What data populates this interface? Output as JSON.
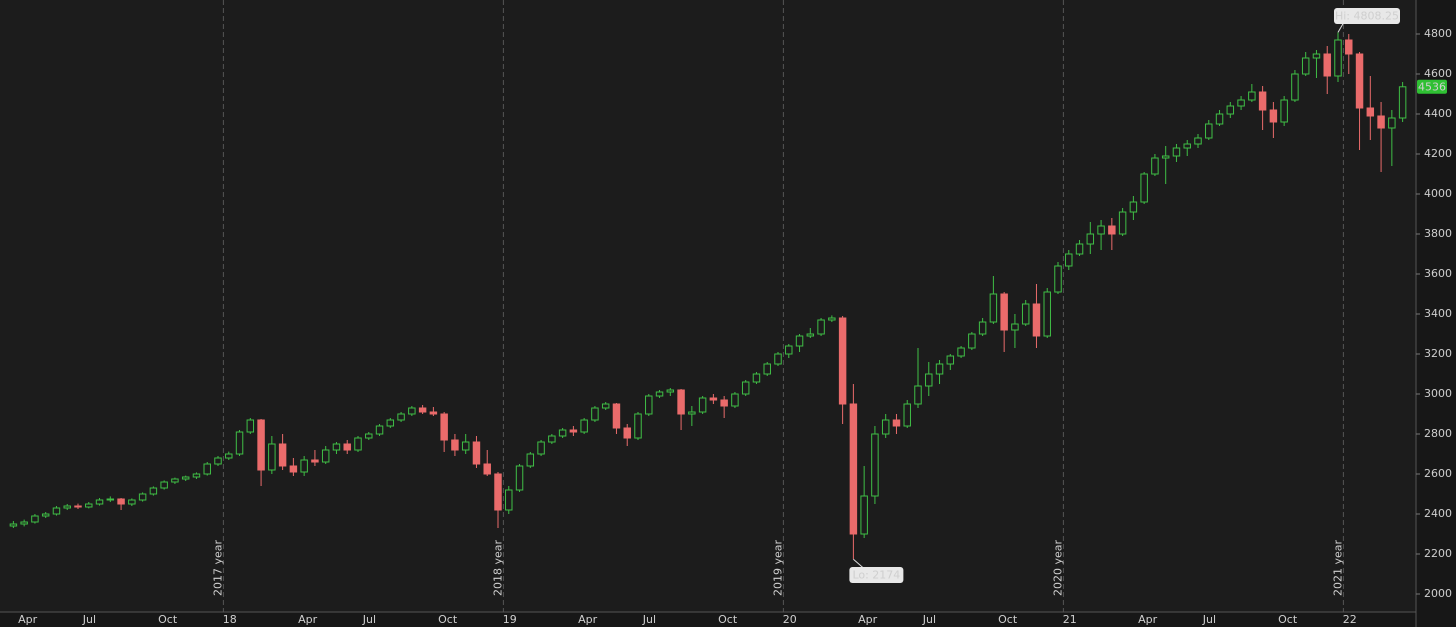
{
  "chart_data": {
    "type": "candlestick",
    "up_color": "#3fbf46",
    "down_color": "#ea6b6b",
    "ylim": [
      1910,
      4970
    ],
    "yticks": [
      2000,
      2200,
      2400,
      2600,
      2800,
      3000,
      3200,
      3400,
      3600,
      3800,
      4000,
      4200,
      4400,
      4600,
      4800
    ],
    "categories": [
      null,
      "Apr",
      null,
      null,
      null,
      null,
      null,
      "Jul",
      null,
      null,
      null,
      null,
      null,
      null,
      "Oct",
      null,
      null,
      null,
      null,
      null,
      "18",
      null,
      null,
      null,
      null,
      null,
      null,
      "Apr",
      null,
      null,
      null,
      null,
      null,
      "Jul",
      null,
      null,
      null,
      null,
      null,
      null,
      "Oct",
      null,
      null,
      null,
      null,
      null,
      "19",
      null,
      null,
      null,
      null,
      null,
      null,
      "Apr",
      null,
      null,
      null,
      null,
      null,
      "Jul",
      null,
      null,
      null,
      null,
      null,
      null,
      "Oct",
      null,
      null,
      null,
      null,
      null,
      "20",
      null,
      null,
      null,
      null,
      null,
      null,
      "Apr",
      null,
      null,
      null,
      null,
      null,
      "Jul",
      null,
      null,
      null,
      null,
      null,
      null,
      "Oct",
      null,
      null,
      null,
      null,
      null,
      "21",
      null,
      null,
      null,
      null,
      null,
      null,
      "Apr",
      null,
      null,
      null,
      null,
      null,
      "Jul",
      null,
      null,
      null,
      null,
      null,
      null,
      "Oct",
      null,
      null,
      null,
      null,
      null,
      "22",
      null,
      null,
      null,
      null,
      null
    ],
    "year_markers": [
      "2017 year",
      "2018 year",
      "2019 year",
      "2020 year",
      "2021 year"
    ],
    "annotations": {
      "high": "Hi: 4808.25",
      "low": "Lo: 2174"
    },
    "ohlc": [
      [
        2340,
        2365,
        2330,
        2350
      ],
      [
        2350,
        2372,
        2338,
        2360
      ],
      [
        2360,
        2400,
        2352,
        2390
      ],
      [
        2390,
        2410,
        2380,
        2400
      ],
      [
        2400,
        2440,
        2392,
        2430
      ],
      [
        2430,
        2450,
        2420,
        2440
      ],
      [
        2440,
        2452,
        2425,
        2435
      ],
      [
        2435,
        2460,
        2428,
        2450
      ],
      [
        2450,
        2480,
        2442,
        2470
      ],
      [
        2470,
        2488,
        2460,
        2475
      ],
      [
        2475,
        2480,
        2420,
        2450
      ],
      [
        2450,
        2478,
        2440,
        2470
      ],
      [
        2470,
        2508,
        2462,
        2500
      ],
      [
        2500,
        2538,
        2492,
        2530
      ],
      [
        2530,
        2568,
        2522,
        2560
      ],
      [
        2560,
        2582,
        2550,
        2575
      ],
      [
        2575,
        2592,
        2565,
        2585
      ],
      [
        2585,
        2608,
        2575,
        2600
      ],
      [
        2600,
        2660,
        2592,
        2650
      ],
      [
        2650,
        2690,
        2640,
        2680
      ],
      [
        2680,
        2712,
        2670,
        2700
      ],
      [
        2700,
        2820,
        2690,
        2810
      ],
      [
        2810,
        2880,
        2800,
        2870
      ],
      [
        2870,
        2875,
        2540,
        2620
      ],
      [
        2620,
        2790,
        2600,
        2750
      ],
      [
        2750,
        2800,
        2620,
        2640
      ],
      [
        2640,
        2680,
        2590,
        2610
      ],
      [
        2610,
        2690,
        2590,
        2670
      ],
      [
        2670,
        2720,
        2640,
        2660
      ],
      [
        2660,
        2740,
        2650,
        2720
      ],
      [
        2720,
        2760,
        2700,
        2750
      ],
      [
        2750,
        2770,
        2700,
        2720
      ],
      [
        2720,
        2790,
        2710,
        2780
      ],
      [
        2780,
        2810,
        2770,
        2800
      ],
      [
        2800,
        2850,
        2790,
        2840
      ],
      [
        2840,
        2880,
        2830,
        2870
      ],
      [
        2870,
        2910,
        2860,
        2900
      ],
      [
        2900,
        2940,
        2890,
        2930
      ],
      [
        2930,
        2945,
        2900,
        2910
      ],
      [
        2910,
        2935,
        2890,
        2900
      ],
      [
        2900,
        2910,
        2710,
        2770
      ],
      [
        2770,
        2800,
        2690,
        2720
      ],
      [
        2720,
        2800,
        2700,
        2760
      ],
      [
        2760,
        2790,
        2630,
        2650
      ],
      [
        2650,
        2720,
        2590,
        2600
      ],
      [
        2600,
        2610,
        2330,
        2420
      ],
      [
        2420,
        2540,
        2400,
        2520
      ],
      [
        2520,
        2650,
        2510,
        2640
      ],
      [
        2640,
        2710,
        2630,
        2700
      ],
      [
        2700,
        2770,
        2690,
        2760
      ],
      [
        2760,
        2800,
        2750,
        2790
      ],
      [
        2790,
        2830,
        2780,
        2820
      ],
      [
        2820,
        2840,
        2790,
        2810
      ],
      [
        2810,
        2880,
        2800,
        2870
      ],
      [
        2870,
        2940,
        2860,
        2930
      ],
      [
        2930,
        2960,
        2920,
        2950
      ],
      [
        2950,
        2955,
        2800,
        2830
      ],
      [
        2830,
        2850,
        2740,
        2780
      ],
      [
        2780,
        2910,
        2770,
        2900
      ],
      [
        2900,
        3000,
        2890,
        2990
      ],
      [
        2990,
        3020,
        2980,
        3010
      ],
      [
        3010,
        3030,
        2990,
        3020
      ],
      [
        3020,
        3025,
        2820,
        2900
      ],
      [
        2900,
        2940,
        2840,
        2910
      ],
      [
        2910,
        2990,
        2900,
        2980
      ],
      [
        2980,
        3000,
        2950,
        2970
      ],
      [
        2970,
        2990,
        2880,
        2940
      ],
      [
        2940,
        3010,
        2930,
        3000
      ],
      [
        3000,
        3070,
        2990,
        3060
      ],
      [
        3060,
        3110,
        3050,
        3100
      ],
      [
        3100,
        3160,
        3090,
        3150
      ],
      [
        3150,
        3210,
        3140,
        3200
      ],
      [
        3200,
        3250,
        3180,
        3240
      ],
      [
        3240,
        3300,
        3210,
        3290
      ],
      [
        3290,
        3330,
        3280,
        3300
      ],
      [
        3300,
        3380,
        3290,
        3370
      ],
      [
        3370,
        3393,
        3360,
        3380
      ],
      [
        3380,
        3390,
        2850,
        2950
      ],
      [
        2950,
        3050,
        2174,
        2300
      ],
      [
        2300,
        2640,
        2280,
        2490
      ],
      [
        2490,
        2840,
        2450,
        2800
      ],
      [
        2800,
        2900,
        2780,
        2870
      ],
      [
        2870,
        2900,
        2800,
        2840
      ],
      [
        2840,
        2970,
        2830,
        2950
      ],
      [
        2950,
        3230,
        2930,
        3040
      ],
      [
        3040,
        3160,
        2990,
        3100
      ],
      [
        3100,
        3170,
        3050,
        3150
      ],
      [
        3150,
        3200,
        3120,
        3190
      ],
      [
        3190,
        3240,
        3180,
        3230
      ],
      [
        3230,
        3310,
        3220,
        3300
      ],
      [
        3300,
        3380,
        3290,
        3360
      ],
      [
        3360,
        3590,
        3350,
        3500
      ],
      [
        3500,
        3510,
        3210,
        3320
      ],
      [
        3320,
        3400,
        3230,
        3350
      ],
      [
        3350,
        3470,
        3340,
        3450
      ],
      [
        3450,
        3550,
        3230,
        3290
      ],
      [
        3290,
        3530,
        3280,
        3510
      ],
      [
        3510,
        3660,
        3500,
        3640
      ],
      [
        3640,
        3720,
        3620,
        3700
      ],
      [
        3700,
        3770,
        3690,
        3750
      ],
      [
        3750,
        3860,
        3700,
        3800
      ],
      [
        3800,
        3870,
        3720,
        3840
      ],
      [
        3840,
        3880,
        3720,
        3800
      ],
      [
        3800,
        3930,
        3790,
        3910
      ],
      [
        3910,
        3990,
        3870,
        3960
      ],
      [
        3960,
        4110,
        3950,
        4100
      ],
      [
        4100,
        4200,
        4090,
        4180
      ],
      [
        4180,
        4240,
        4050,
        4190
      ],
      [
        4190,
        4250,
        4160,
        4230
      ],
      [
        4230,
        4270,
        4190,
        4250
      ],
      [
        4250,
        4300,
        4230,
        4280
      ],
      [
        4280,
        4370,
        4270,
        4350
      ],
      [
        4350,
        4420,
        4340,
        4400
      ],
      [
        4400,
        4460,
        4380,
        4440
      ],
      [
        4440,
        4490,
        4420,
        4470
      ],
      [
        4470,
        4550,
        4460,
        4510
      ],
      [
        4510,
        4540,
        4320,
        4420
      ],
      [
        4420,
        4460,
        4280,
        4360
      ],
      [
        4360,
        4490,
        4340,
        4470
      ],
      [
        4470,
        4620,
        4460,
        4600
      ],
      [
        4600,
        4710,
        4590,
        4680
      ],
      [
        4680,
        4720,
        4580,
        4700
      ],
      [
        4700,
        4740,
        4500,
        4590
      ],
      [
        4590,
        4808.25,
        4560,
        4770
      ],
      [
        4770,
        4800,
        4600,
        4700
      ],
      [
        4700,
        4710,
        4220,
        4430
      ],
      [
        4430,
        4590,
        4270,
        4390
      ],
      [
        4390,
        4460,
        4110,
        4330
      ],
      [
        4330,
        4420,
        4140,
        4380
      ],
      [
        4380,
        4560,
        4360,
        4536
      ]
    ]
  }
}
